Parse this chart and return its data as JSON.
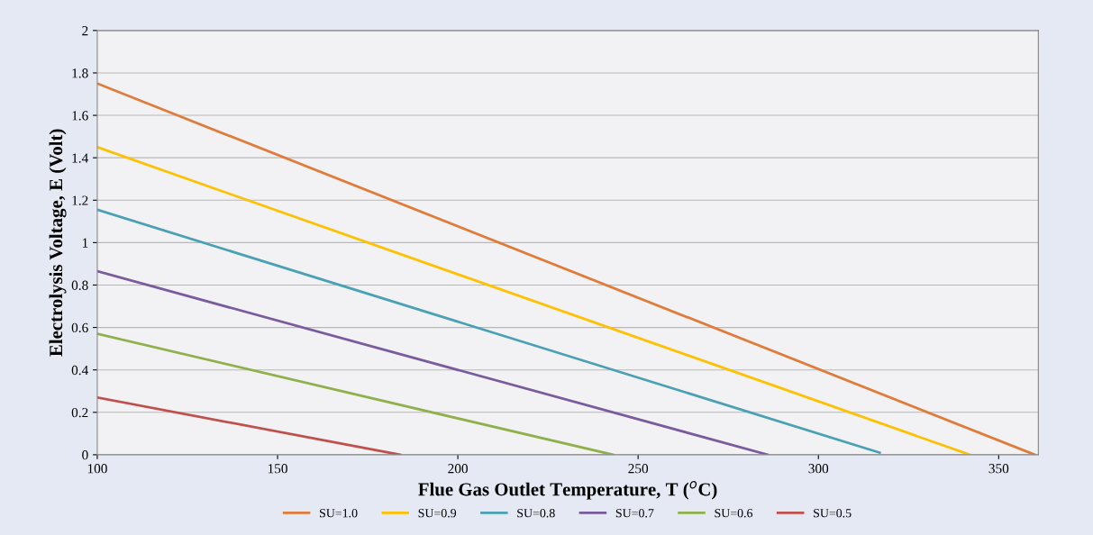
{
  "chart_data": {
    "type": "line",
    "xlabel": "Flue Gas Outlet Temperature, T ($^{o}$C)",
    "ylabel": "Electrolysis Voltage, E (Volt)",
    "xlim": [
      100,
      361
    ],
    "xticks": [
      100,
      150,
      200,
      250,
      300,
      350
    ],
    "ylim": [
      0,
      2
    ],
    "yticks": [
      0,
      0.2,
      0.4,
      0.6,
      0.8,
      1,
      1.2,
      1.4,
      1.6,
      1.8,
      2
    ],
    "grid": "y",
    "legend": "bottom",
    "marker": "none",
    "line_style": "solid",
    "series": [
      {
        "name": "SU=1.0",
        "color": "#e07b39",
        "x": [
          100,
          360
        ],
        "values": [
          1.75,
          0
        ]
      },
      {
        "name": "SU=0.9",
        "color": "#ffc000",
        "x": [
          100,
          342
        ],
        "values": [
          1.45,
          0
        ]
      },
      {
        "name": "SU=0.8",
        "color": "#4aa0b5",
        "x": [
          100,
          317
        ],
        "values": [
          1.155,
          0.01
        ]
      },
      {
        "name": "SU=0.7",
        "color": "#7a5c9e",
        "x": [
          100,
          286
        ],
        "values": [
          0.865,
          0
        ]
      },
      {
        "name": "SU=0.6",
        "color": "#8fb04a",
        "x": [
          100,
          243
        ],
        "values": [
          0.57,
          0
        ]
      },
      {
        "name": "SU=0.5",
        "color": "#c0504d",
        "x": [
          100,
          184
        ],
        "values": [
          0.27,
          0
        ]
      }
    ]
  }
}
